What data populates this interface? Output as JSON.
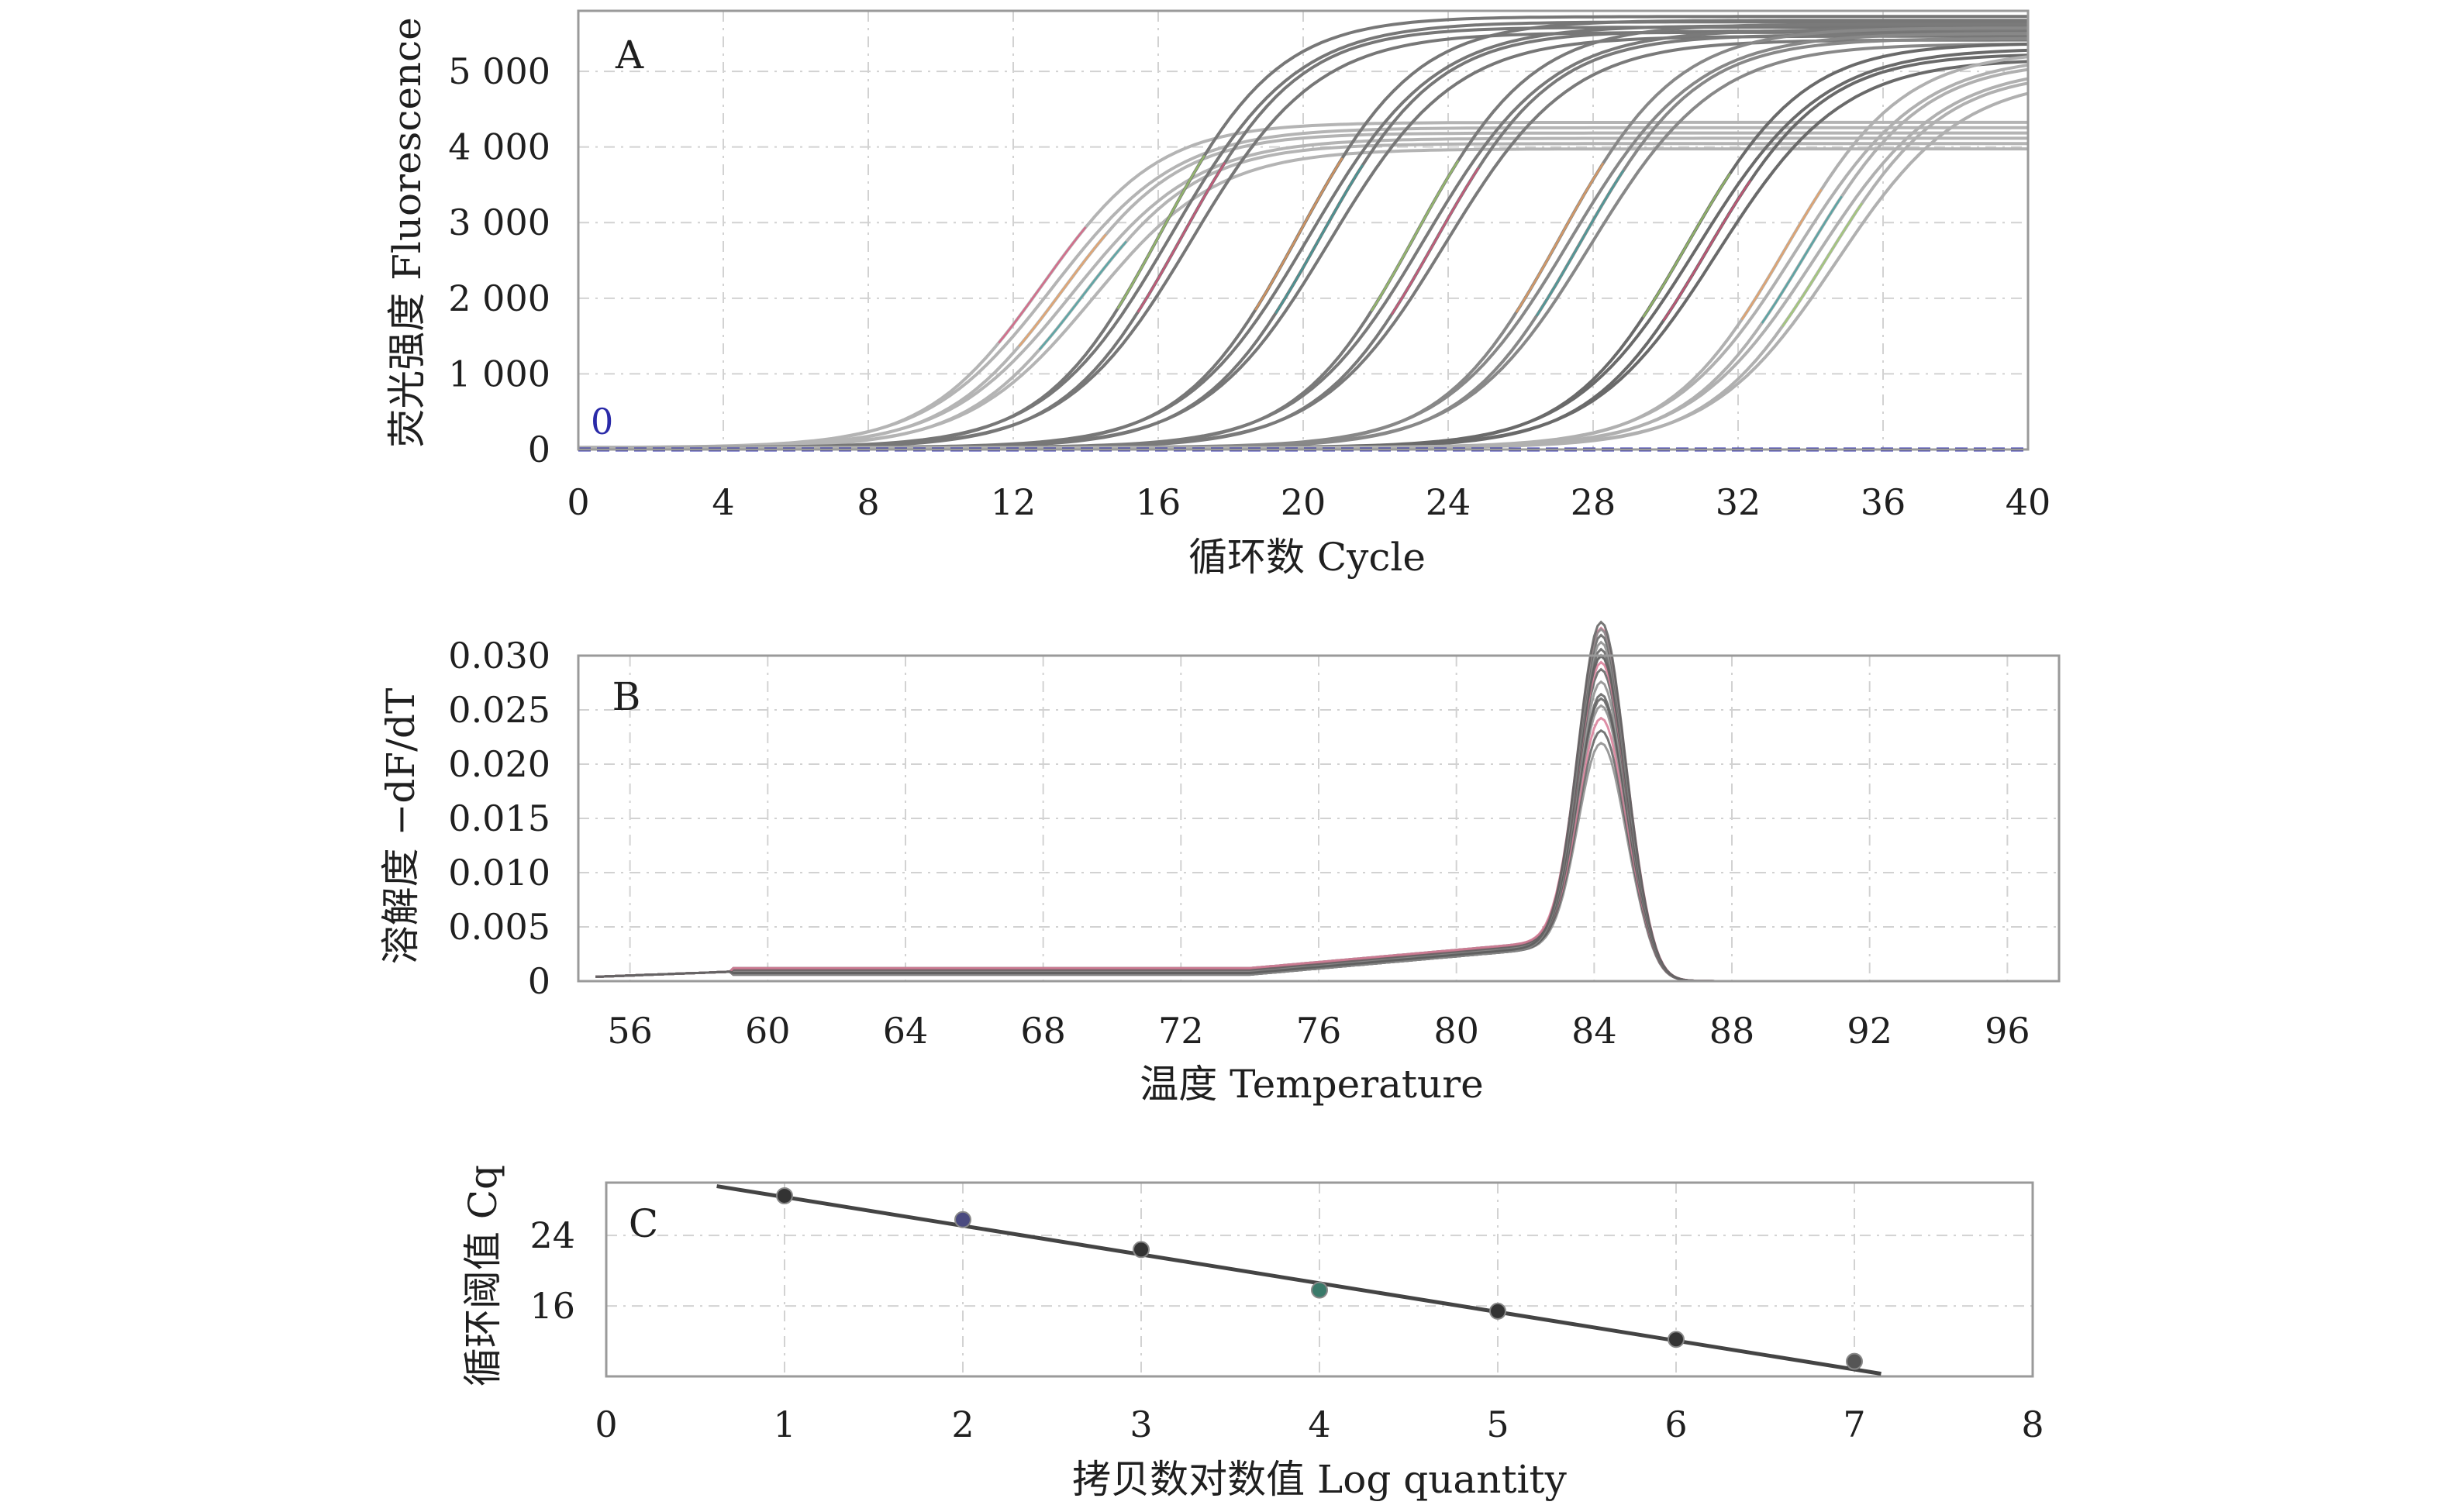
{
  "chart_data": [
    {
      "type": "line",
      "panel_label": "A",
      "xlabel": "循环数 Cycle",
      "ylabel": "荧光强度 Fluorescence",
      "xlim": [
        0,
        40
      ],
      "ylim": [
        0,
        5800
      ],
      "xticks": [
        0,
        4,
        8,
        12,
        16,
        20,
        24,
        28,
        32,
        36,
        40
      ],
      "yticks": [
        0,
        1000,
        2000,
        3000,
        4000,
        5000
      ],
      "ytick_labels": [
        "0",
        "1 000",
        "2 000",
        "3 000",
        "4 000",
        "5 000"
      ],
      "xtick_labels": [
        "0",
        "4",
        "8",
        "12",
        "16",
        "20",
        "24",
        "28",
        "32",
        "36",
        "40"
      ],
      "threshold": {
        "value": 0,
        "label": "0",
        "color": "#2a2aa8"
      },
      "grid": true,
      "series_style": {
        "stroke": "#666666",
        "highlight_colors": [
          "#e0507a",
          "#f2a05a",
          "#3aa0a0",
          "#9fd06a"
        ]
      },
      "curve_groups": [
        {
          "ct": 13.5,
          "plateau": 4300,
          "count": 6,
          "color": "#b4b4b4"
        },
        {
          "ct": 16.5,
          "plateau": 5700,
          "count": 4,
          "color": "#777777"
        },
        {
          "ct": 20.3,
          "plateau": 5650,
          "count": 4,
          "color": "#777777"
        },
        {
          "ct": 23.5,
          "plateau": 5600,
          "count": 4,
          "color": "#7a7a7a"
        },
        {
          "ct": 27.5,
          "plateau": 5550,
          "count": 4,
          "color": "#888888"
        },
        {
          "ct": 31.0,
          "plateau": 5350,
          "count": 4,
          "color": "#6a6a6a"
        },
        {
          "ct": 34.0,
          "plateau": 5250,
          "count": 6,
          "color": "#b0b0b0"
        }
      ]
    },
    {
      "type": "line",
      "panel_label": "B",
      "xlabel": "温度 Temperature",
      "ylabel": "溶解度 −dF/dT",
      "xlim": [
        54.5,
        97.5
      ],
      "ylim": [
        0,
        0.03
      ],
      "xticks": [
        56,
        60,
        64,
        68,
        72,
        76,
        80,
        84,
        88,
        92,
        96
      ],
      "xtick_labels": [
        "56",
        "60",
        "64",
        "68",
        "72",
        "76",
        "80",
        "84",
        "88",
        "92",
        "96"
      ],
      "yticks": [
        0,
        0.005,
        0.01,
        0.015,
        0.02,
        0.025,
        0.03
      ],
      "ytick_labels": [
        "0",
        "0.005",
        "0.010",
        "0.015",
        "0.020",
        "0.025",
        "0.030"
      ],
      "peak_temperature": 84.2,
      "peak_heights": [
        0.0185,
        0.0195,
        0.0205,
        0.0215,
        0.022,
        0.023,
        0.024,
        0.025,
        0.0255,
        0.026,
        0.0265,
        0.027,
        0.0275,
        0.028,
        0.0285,
        0.029,
        0.0295
      ],
      "grid": true
    },
    {
      "type": "scatter",
      "panel_label": "C",
      "xlabel": "拷贝数对数值 Log quantity",
      "ylabel": "循环阈值 Cq",
      "xlim": [
        0,
        8
      ],
      "ylim": [
        8,
        30
      ],
      "xticks": [
        0,
        1,
        2,
        3,
        4,
        5,
        6,
        7,
        8
      ],
      "xtick_labels": [
        "0",
        "1",
        "2",
        "3",
        "4",
        "5",
        "6",
        "7",
        "8"
      ],
      "yticks": [
        16,
        24
      ],
      "ytick_labels": [
        "16",
        "24"
      ],
      "points": [
        {
          "x": 1,
          "y": 28.5,
          "color": "#333333"
        },
        {
          "x": 2,
          "y": 25.8,
          "color": "#4a4a80"
        },
        {
          "x": 3,
          "y": 22.4,
          "color": "#333333"
        },
        {
          "x": 4,
          "y": 17.8,
          "color": "#3a7a6a"
        },
        {
          "x": 5,
          "y": 15.4,
          "color": "#333333"
        },
        {
          "x": 6,
          "y": 12.2,
          "color": "#333333"
        },
        {
          "x": 7,
          "y": 9.7,
          "color": "#555555"
        }
      ],
      "fit_line": {
        "x": [
          0.62,
          7.15
        ],
        "y": [
          29.6,
          8.3
        ]
      },
      "grid": true
    }
  ]
}
